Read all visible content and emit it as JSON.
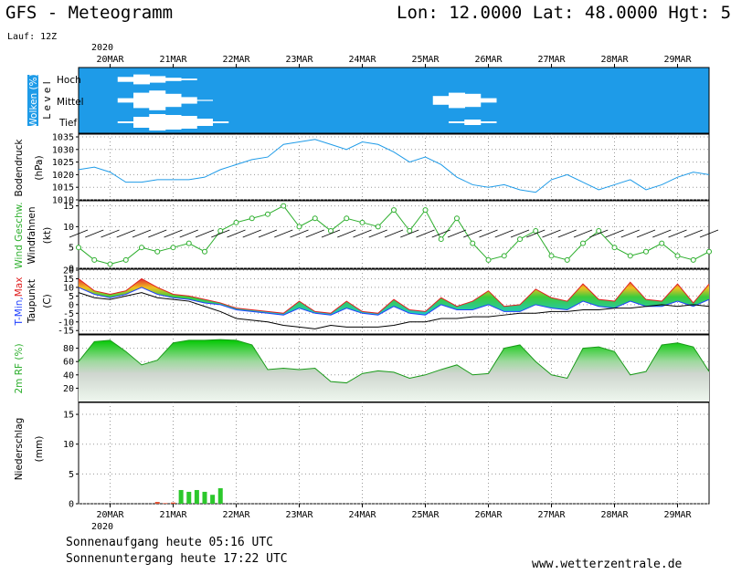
{
  "header": {
    "model_title": "GFS - Meteogramm",
    "location": "Lon: 12.0000 Lat: 48.0000 Hgt: 5",
    "run": "Lauf: 12Z"
  },
  "time_axis": {
    "year": "2020",
    "dates": [
      "20MAR",
      "21MAR",
      "22MAR",
      "23MAR",
      "24MAR",
      "25MAR",
      "26MAR",
      "27MAR",
      "28MAR",
      "29MAR"
    ]
  },
  "panels": {
    "clouds": {
      "label": "Wolken (%)",
      "sublabel": "L e v e l",
      "levels": [
        "Hoch",
        "Mittel",
        "Tief"
      ]
    },
    "pressure": {
      "label": "Bodendruck",
      "unit": "(hPa)",
      "ticks": [
        "1035",
        "1030",
        "1025",
        "1020",
        "1015",
        "1010"
      ]
    },
    "wind": {
      "label": "Wind Geschw.",
      "sublabel": "Windfahnen",
      "unit": "(kt)",
      "ticks": [
        "15",
        "10",
        "5",
        "0"
      ]
    },
    "temperature": {
      "label_min": "T-Min,",
      "label_max": "Max",
      "unit": "(C)",
      "sublabel": "Taupunkt",
      "ticks": [
        "20",
        "15",
        "10",
        "5",
        "0",
        "-5",
        "-10",
        "-15"
      ]
    },
    "humidity": {
      "label": "2m RF (%)",
      "ticks": [
        "80",
        "60",
        "40",
        "20"
      ]
    },
    "precipitation": {
      "label": "Niederschlag",
      "unit": "(mm)",
      "ticks": [
        "15",
        "10",
        "5",
        "0"
      ]
    }
  },
  "footer": {
    "sunrise": "Sonnenaufgang heute 05:16 UTC",
    "sunset": "Sonnenuntergang heute 17:22 UTC",
    "website": "www.wetterzentrale.de"
  },
  "colors": {
    "sky_blue": "#1e9be8",
    "pressure_line": "#1e9be8",
    "wind_line": "#2cae2c",
    "humidity_fill": "#3ac83a",
    "precip_bar": "#2cc82c",
    "dewpoint": "#000000"
  },
  "chart_data": [
    {
      "type": "area",
      "title": "Wolken (%)",
      "x": [
        0,
        6,
        12,
        18,
        24,
        30,
        36,
        42,
        48,
        54,
        60,
        66,
        72,
        78,
        84,
        90,
        96,
        102,
        108,
        114,
        120,
        126,
        132,
        138,
        144,
        150,
        156,
        162,
        168,
        174,
        180,
        186,
        192,
        198,
        204,
        210,
        216
      ],
      "series": [
        {
          "name": "Hoch",
          "values": [
            0,
            0,
            0,
            30,
            60,
            40,
            20,
            10,
            0,
            0,
            0,
            0,
            0,
            0,
            0,
            0,
            0,
            0,
            0,
            0,
            0,
            0,
            0,
            0,
            0,
            0,
            0,
            0,
            0,
            0,
            0,
            0,
            0,
            0,
            0,
            0,
            0
          ]
        },
        {
          "name": "Mittel",
          "values": [
            0,
            0,
            0,
            20,
            70,
            90,
            60,
            30,
            5,
            0,
            0,
            0,
            0,
            0,
            0,
            0,
            0,
            0,
            0,
            0,
            0,
            0,
            0,
            40,
            70,
            60,
            20,
            0,
            0,
            0,
            0,
            0,
            0,
            0,
            0,
            0,
            0
          ]
        },
        {
          "name": "Tief",
          "values": [
            0,
            0,
            0,
            10,
            60,
            90,
            80,
            70,
            40,
            10,
            0,
            0,
            0,
            0,
            0,
            0,
            0,
            0,
            0,
            0,
            0,
            0,
            0,
            0,
            10,
            30,
            10,
            0,
            0,
            0,
            0,
            0,
            0,
            0,
            0,
            0,
            0
          ]
        }
      ]
    },
    {
      "type": "line",
      "title": "Bodendruck",
      "ylabel": "(hPa)",
      "ylim": [
        1010,
        1035
      ],
      "x": [
        0,
        6,
        12,
        18,
        24,
        30,
        36,
        42,
        48,
        54,
        60,
        66,
        72,
        78,
        84,
        90,
        96,
        102,
        108,
        114,
        120,
        126,
        132,
        138,
        144,
        150,
        156,
        162,
        168,
        174,
        180,
        186,
        192,
        198,
        204,
        210,
        216,
        222,
        228,
        234,
        240
      ],
      "series": [
        {
          "name": "Bodendruck",
          "values": [
            1022,
            1023,
            1021,
            1017,
            1017,
            1018,
            1018,
            1018,
            1019,
            1022,
            1024,
            1026,
            1027,
            1032,
            1033,
            1034,
            1032,
            1030,
            1033,
            1032,
            1029,
            1025,
            1027,
            1024,
            1019,
            1016,
            1015,
            1016,
            1014,
            1013,
            1018,
            1020,
            1017,
            1014,
            1016,
            1018,
            1014,
            1016,
            1019,
            1021,
            1020
          ]
        }
      ]
    },
    {
      "type": "line",
      "title": "Wind Geschw.",
      "ylabel": "(kt)",
      "ylim": [
        0,
        16
      ],
      "x": [
        0,
        6,
        12,
        18,
        24,
        30,
        36,
        42,
        48,
        54,
        60,
        66,
        72,
        78,
        84,
        90,
        96,
        102,
        108,
        114,
        120,
        126,
        132,
        138,
        144,
        150,
        156,
        162,
        168,
        174,
        180,
        186,
        192,
        198,
        204,
        210,
        216,
        222,
        228,
        234,
        240
      ],
      "series": [
        {
          "name": "Wind Geschw.",
          "values": [
            5,
            2,
            1,
            2,
            5,
            4,
            5,
            6,
            4,
            9,
            11,
            12,
            13,
            15,
            10,
            12,
            9,
            12,
            11,
            10,
            14,
            9,
            14,
            7,
            12,
            6,
            2,
            3,
            7,
            9,
            3,
            2,
            6,
            9,
            5,
            3,
            4,
            6,
            3,
            2,
            4
          ]
        }
      ]
    },
    {
      "type": "line",
      "title": "T-Min, Max / Taupunkt",
      "ylabel": "(C)",
      "ylim": [
        -17,
        20
      ],
      "x": [
        0,
        6,
        12,
        18,
        24,
        30,
        36,
        42,
        48,
        54,
        60,
        66,
        72,
        78,
        84,
        90,
        96,
        102,
        108,
        114,
        120,
        126,
        132,
        138,
        144,
        150,
        156,
        162,
        168,
        174,
        180,
        186,
        192,
        198,
        204,
        210,
        216,
        222,
        228,
        234,
        240
      ],
      "series": [
        {
          "name": "T-Max",
          "values": [
            15,
            8,
            6,
            8,
            15,
            10,
            6,
            5,
            3,
            1,
            -2,
            -3,
            -4,
            -5,
            2,
            -4,
            -5,
            2,
            -4,
            -5,
            3,
            -3,
            -4,
            4,
            -1,
            2,
            8,
            -1,
            0,
            9,
            4,
            2,
            12,
            3,
            2,
            13,
            3,
            2,
            12,
            1,
            12
          ]
        },
        {
          "name": "T-Min",
          "values": [
            10,
            6,
            4,
            6,
            10,
            6,
            4,
            3,
            1,
            0,
            -3,
            -4,
            -5,
            -6,
            -2,
            -5,
            -6,
            -2,
            -5,
            -6,
            -1,
            -5,
            -6,
            0,
            -3,
            -3,
            0,
            -4,
            -4,
            0,
            -2,
            -3,
            2,
            -1,
            -2,
            2,
            -1,
            -1,
            2,
            -1,
            3
          ]
        },
        {
          "name": "Taupunkt",
          "values": [
            7,
            4,
            3,
            5,
            7,
            4,
            3,
            2,
            -1,
            -4,
            -8,
            -9,
            -10,
            -12,
            -13,
            -14,
            -12,
            -13,
            -13,
            -13,
            -12,
            -10,
            -10,
            -8,
            -8,
            -7,
            -7,
            -6,
            -5,
            -5,
            -4,
            -4,
            -3,
            -3,
            -2,
            -2,
            -1,
            0,
            -1,
            0,
            -1
          ]
        }
      ]
    },
    {
      "type": "area",
      "title": "2m RF (%)",
      "ylim": [
        0,
        100
      ],
      "x": [
        0,
        6,
        12,
        18,
        24,
        30,
        36,
        42,
        48,
        54,
        60,
        66,
        72,
        78,
        84,
        90,
        96,
        102,
        108,
        114,
        120,
        126,
        132,
        138,
        144,
        150,
        156,
        162,
        168,
        174,
        180,
        186,
        192,
        198,
        204,
        210,
        216,
        222,
        228,
        234,
        240
      ],
      "series": [
        {
          "name": "2m RF (%)",
          "values": [
            60,
            90,
            92,
            75,
            55,
            62,
            88,
            92,
            92,
            93,
            92,
            85,
            48,
            50,
            48,
            50,
            30,
            28,
            42,
            46,
            44,
            35,
            40,
            48,
            55,
            40,
            42,
            80,
            85,
            60,
            40,
            35,
            80,
            82,
            75,
            40,
            45,
            85,
            88,
            82,
            45
          ]
        }
      ]
    },
    {
      "type": "bar",
      "title": "Niederschlag",
      "ylabel": "(mm)",
      "ylim": [
        0,
        17
      ],
      "x": [
        30,
        33,
        36,
        39,
        42,
        45,
        48,
        51,
        54
      ],
      "series": [
        {
          "name": "Niederschlag",
          "values": [
            0.3,
            0.1,
            0.2,
            2.3,
            2.0,
            2.3,
            2.0,
            1.5,
            2.6
          ]
        }
      ]
    }
  ]
}
